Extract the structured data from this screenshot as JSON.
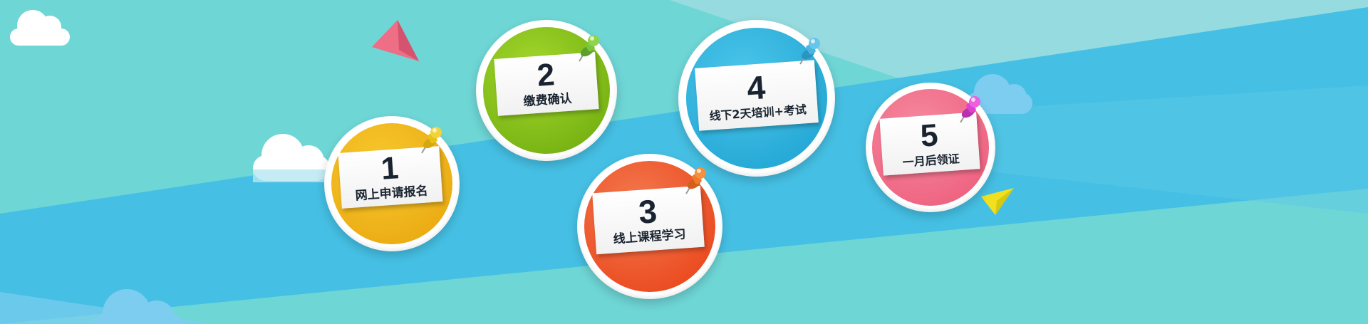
{
  "steps": [
    {
      "number": "1",
      "label": "网上申请报名",
      "color": "#f2b819",
      "color_dark": "#e09a0a",
      "pin": "yellow-pushpin-icon",
      "pin_color": "#e8c21a"
    },
    {
      "number": "2",
      "label": "缴费确认",
      "color": "#8cc820",
      "color_dark": "#6aa80c",
      "pin": "green-pushpin-icon",
      "pin_color": "#7cc43a"
    },
    {
      "number": "3",
      "label": "线上课程学习",
      "color": "#f05a2a",
      "color_dark": "#e8441a",
      "pin": "orange-pushpin-icon",
      "pin_color": "#f07a2a"
    },
    {
      "number": "4",
      "label": "线下2天培训+考试",
      "color": "#34b8e0",
      "color_dark": "#1aa0d0",
      "pin": "blue-pushpin-icon",
      "pin_color": "#4ab6e0"
    },
    {
      "number": "5",
      "label": "一月后领证",
      "color": "#f26a84",
      "color_dark": "#ec5878",
      "pin": "magenta-pushpin-icon",
      "pin_color": "#e040d0"
    }
  ],
  "theme": {
    "sky": "#6fd6d6",
    "band": "#45c0e4",
    "stripe": "#9adbe0",
    "cloud": "#ffffff",
    "cloud_blue": "#7ccdf0"
  },
  "decorations": [
    "cloud-icon",
    "paper-plane-icon"
  ]
}
